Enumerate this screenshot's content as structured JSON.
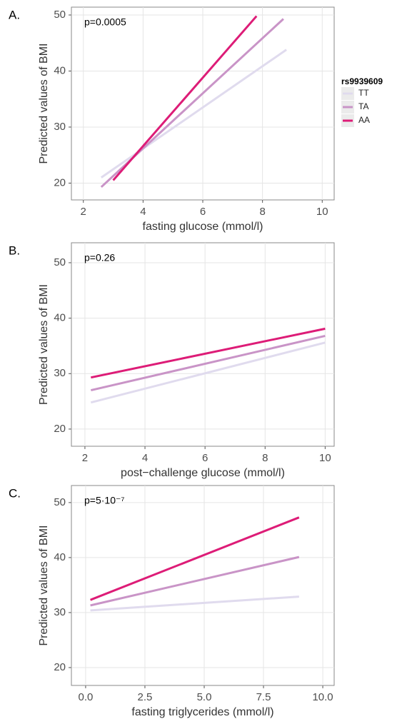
{
  "chart_data": [
    {
      "type": "line",
      "panel_label": "A.",
      "annotation": "p=0.0005",
      "x_label": "fasting glucose (mmol/l)",
      "y_label": "Predicted values of BMI",
      "legend_title": "rs9939609",
      "legend": "right",
      "xlim": [
        1.6,
        10.4
      ],
      "xticks": [
        2,
        4,
        6,
        8,
        10
      ],
      "ylim": [
        17,
        51.4
      ],
      "yticks": [
        20,
        30,
        40,
        50
      ],
      "grid": true,
      "series": [
        {
          "name": "TT",
          "color": "#e0dbee",
          "x": [
            2.6,
            8.8
          ],
          "values": [
            21,
            43.8
          ]
        },
        {
          "name": "TA",
          "color": "#c994c7",
          "x": [
            2.6,
            8.7
          ],
          "values": [
            19.3,
            49.3
          ]
        },
        {
          "name": "AA",
          "color": "#dd1c77",
          "x": [
            3.0,
            7.8
          ],
          "values": [
            20.5,
            49.8
          ]
        }
      ]
    },
    {
      "type": "line",
      "panel_label": "B.",
      "annotation": "p=0.26",
      "x_label": "post−challenge glucose (mmol/l)",
      "y_label": "Predicted values of BMI",
      "xlim": [
        1.55,
        10.3
      ],
      "xticks": [
        2,
        4,
        6,
        8,
        10
      ],
      "ylim": [
        16.9,
        53.6
      ],
      "yticks": [
        20,
        30,
        40,
        50
      ],
      "grid": true,
      "series": [
        {
          "color": "#e0dbee",
          "x": [
            2.2,
            10
          ],
          "values": [
            24.8,
            35.6
          ]
        },
        {
          "color": "#c994c7",
          "x": [
            2.2,
            10
          ],
          "values": [
            27,
            36.8
          ]
        },
        {
          "color": "#dd1c77",
          "x": [
            2.2,
            10
          ],
          "values": [
            29.3,
            38.1
          ]
        }
      ]
    },
    {
      "type": "line",
      "panel_label": "C.",
      "annotation": "p=5·10⁻⁷",
      "x_label": "fasting triglycerides (mmol/l)",
      "y_label": "Predicted values of BMI",
      "xlim": [
        -0.6,
        10.48
      ],
      "xticks": [
        {
          "value": 0,
          "label": "0.0"
        },
        2.5,
        {
          "value": 5,
          "label": "5.0"
        },
        7.5,
        {
          "value": 10,
          "label": "10.0"
        }
      ],
      "ylim": [
        16.75,
        53.1
      ],
      "yticks": [
        20,
        30,
        40,
        50
      ],
      "grid": true,
      "series": [
        {
          "color": "#e0dbee",
          "x": [
            0.2,
            9
          ],
          "values": [
            30.4,
            32.9
          ]
        },
        {
          "color": "#c994c7",
          "x": [
            0.2,
            9
          ],
          "values": [
            31.3,
            40.1
          ]
        },
        {
          "color": "#dd1c77",
          "x": [
            0.2,
            9
          ],
          "values": [
            32.3,
            47.3
          ]
        }
      ]
    }
  ]
}
